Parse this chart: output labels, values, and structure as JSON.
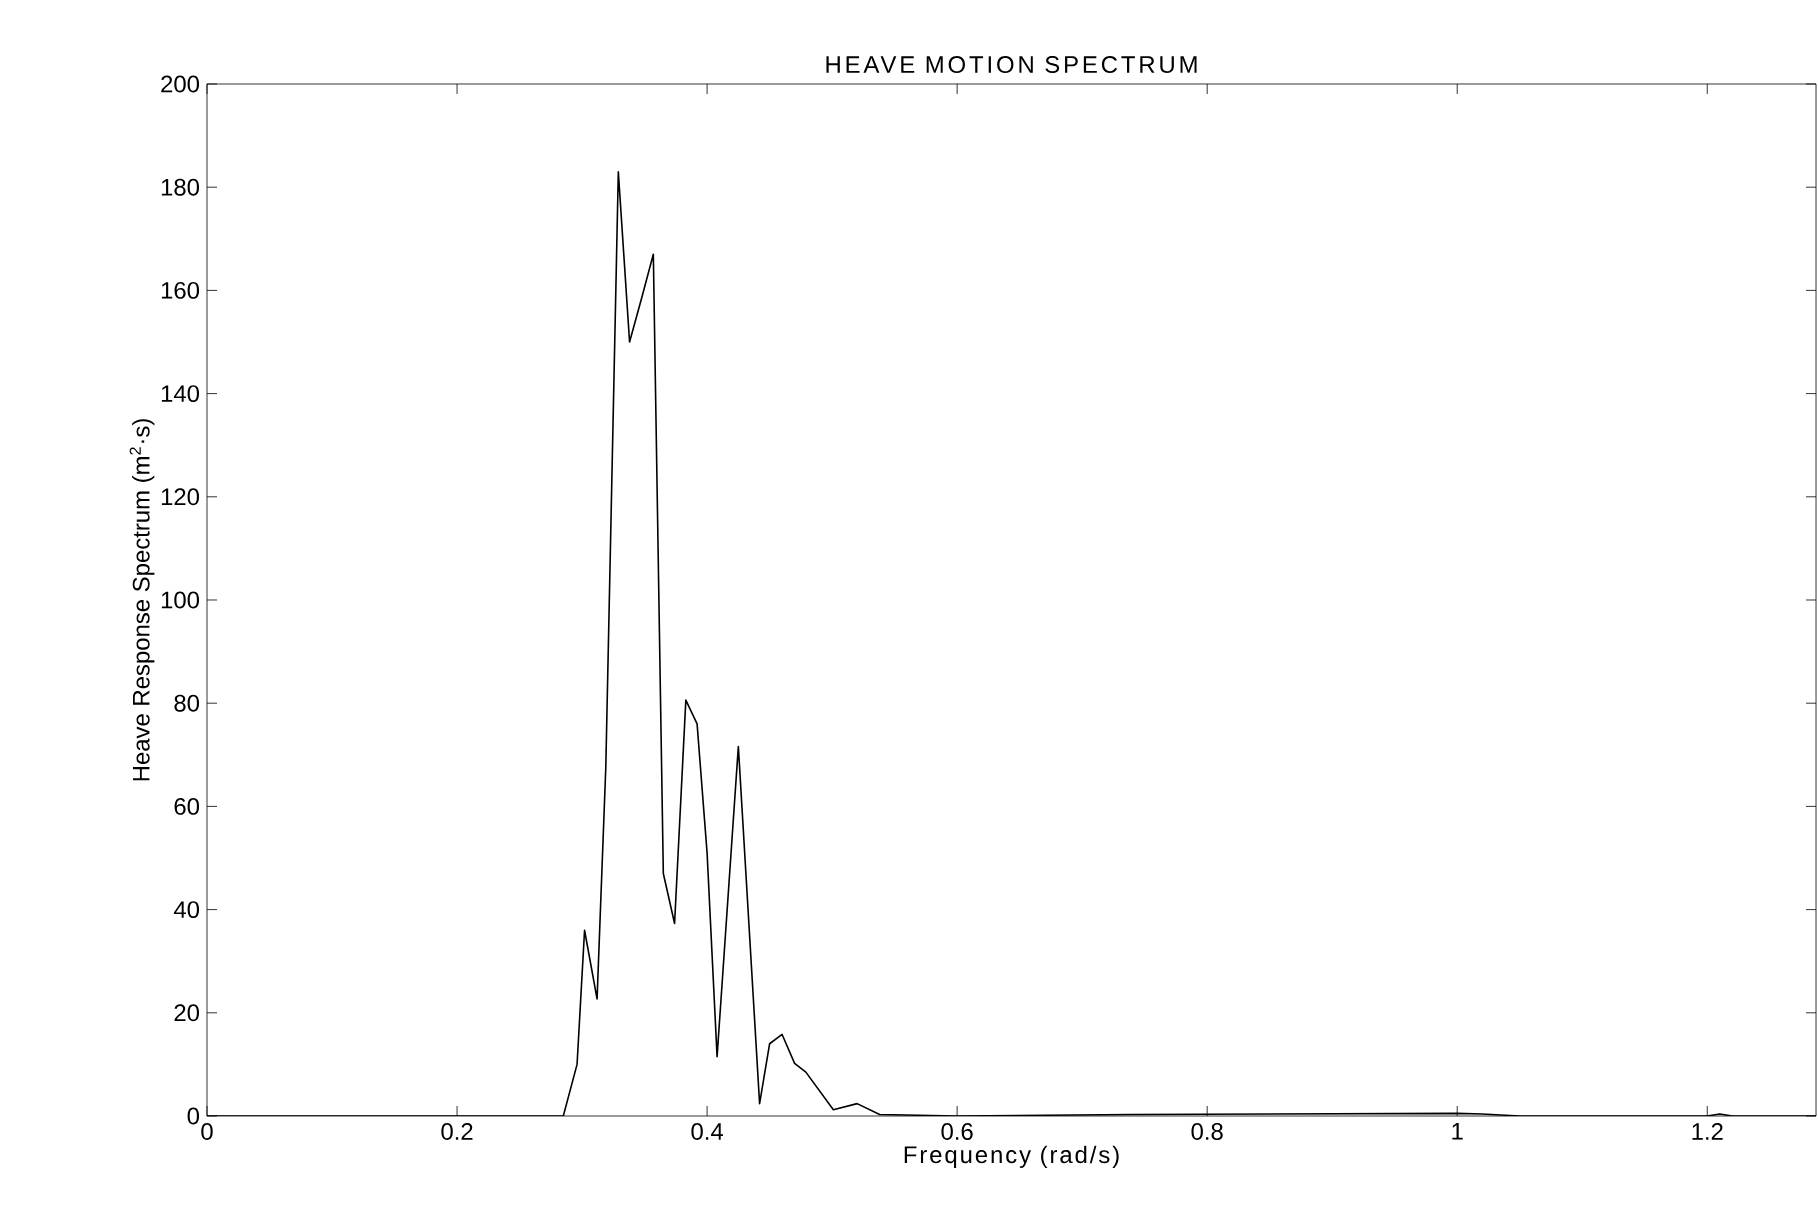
{
  "chart_data": {
    "type": "line",
    "title": "HEAVE MOTION SPECTRUM",
    "xlabel": "Frequency (rad/s)",
    "ylabel": "Heave Response Spectrum (m$^{2}$·s)",
    "xlim": [
      0,
      1.287
    ],
    "ylim": [
      0,
      200
    ],
    "xticks": [
      0,
      0.2,
      0.4,
      0.6,
      0.8,
      1,
      1.2
    ],
    "yticks": [
      0,
      20,
      40,
      60,
      80,
      100,
      120,
      140,
      160,
      180,
      200
    ],
    "marker": "none",
    "line_style": "solid",
    "x": [
      0,
      0.285,
      0.296,
      0.302,
      0.312,
      0.319,
      0.329,
      0.338,
      0.348,
      0.357,
      0.365,
      0.374,
      0.383,
      0.392,
      0.4,
      0.408,
      0.425,
      0.442,
      0.45,
      0.46,
      0.47,
      0.479,
      0.501,
      0.52,
      0.538,
      0.6,
      0.74,
      1.0,
      1.02,
      1.05,
      1.2,
      1.21,
      1.22,
      1.287
    ],
    "series": [
      {
        "color": "#000000",
        "values": [
          0,
          0,
          10,
          36,
          22.7,
          67.7,
          183,
          150,
          158.8,
          167,
          47,
          37.3,
          80.6,
          76,
          51,
          11.5,
          71.6,
          2.4,
          14,
          15.8,
          10.2,
          8.5,
          1.2,
          2.4,
          0.3,
          0,
          0.3,
          0.5,
          0.4,
          0,
          0,
          0.4,
          0,
          0
        ]
      }
    ]
  }
}
